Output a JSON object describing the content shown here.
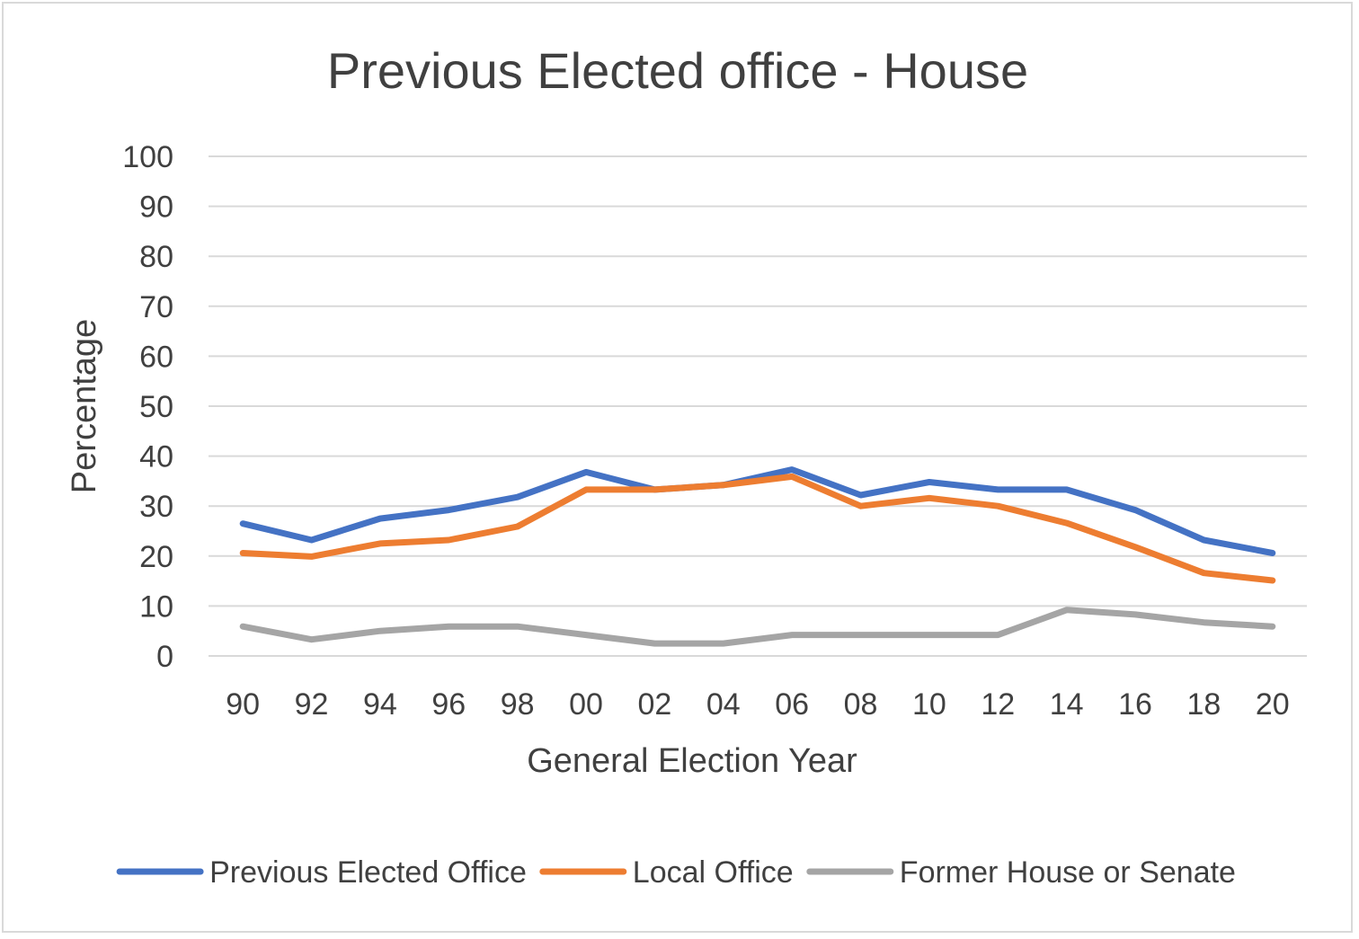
{
  "chart_data": {
    "type": "line",
    "title": "Previous Elected office - House",
    "xlabel": "General Election Year",
    "ylabel": "Percentage",
    "categories": [
      "90",
      "92",
      "94",
      "96",
      "98",
      "00",
      "02",
      "04",
      "06",
      "08",
      "10",
      "12",
      "14",
      "16",
      "18",
      "20"
    ],
    "ylim": [
      0,
      100
    ],
    "yticks": [
      0,
      10,
      20,
      30,
      40,
      50,
      60,
      70,
      80,
      90,
      100
    ],
    "grid": true,
    "legend_position": "bottom",
    "series": [
      {
        "name": "Previous Elected Office",
        "color": "#4472c4",
        "values": [
          26.5,
          23.2,
          27.5,
          29.2,
          31.8,
          36.8,
          33.3,
          34.2,
          37.3,
          32.2,
          34.8,
          33.3,
          33.3,
          29.2,
          23.2,
          20.6
        ]
      },
      {
        "name": "Local Office",
        "color": "#ed7d31",
        "values": [
          20.6,
          19.9,
          22.5,
          23.2,
          25.9,
          33.3,
          33.3,
          34.2,
          35.9,
          30.0,
          31.6,
          30.0,
          26.6,
          21.8,
          16.6,
          15.1
        ]
      },
      {
        "name": "Former House or Senate",
        "color": "#a5a5a5",
        "values": [
          5.9,
          3.3,
          5.0,
          5.9,
          5.9,
          4.2,
          2.5,
          2.5,
          4.2,
          4.2,
          4.2,
          4.2,
          9.2,
          8.3,
          6.7,
          5.9
        ]
      }
    ]
  }
}
